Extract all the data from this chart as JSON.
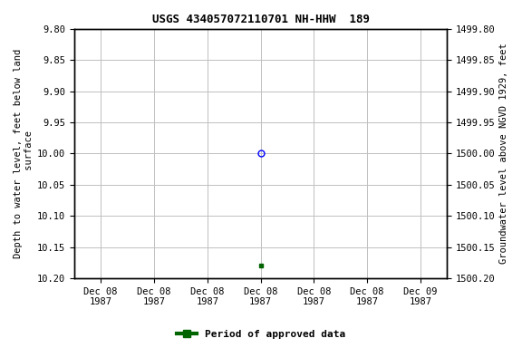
{
  "title": "USGS 434057072110701 NH-HHW  189",
  "ylabel_left": "Depth to water level, feet below land\n surface",
  "ylabel_right": "Groundwater level above NGVD 1929, feet",
  "ylim_left": [
    9.8,
    10.2
  ],
  "ylim_right": [
    1500.2,
    1499.8
  ],
  "yticks_left": [
    9.8,
    9.85,
    9.9,
    9.95,
    10.0,
    10.05,
    10.1,
    10.15,
    10.2
  ],
  "yticks_right": [
    1500.2,
    1500.15,
    1500.1,
    1500.05,
    1500.0,
    1499.95,
    1499.9,
    1499.85,
    1499.8
  ],
  "ytick_labels_left": [
    "9.80",
    "9.85",
    "9.90",
    "9.95",
    "10.00",
    "10.05",
    "10.10",
    "10.15",
    "10.20"
  ],
  "ytick_labels_right": [
    "1500.20",
    "1500.15",
    "1500.10",
    "1500.05",
    "1500.00",
    "1499.95",
    "1499.90",
    "1499.85",
    "1499.80"
  ],
  "data_point_x": 3.5,
  "data_point_y": 10.0,
  "data_point_color": "blue",
  "data_point_marker": "o",
  "green_dot_x": 3.5,
  "green_dot_y": 10.18,
  "green_dot_color": "#006400",
  "xlim": [
    0,
    7
  ],
  "xtick_positions": [
    0.5,
    1.5,
    2.5,
    3.5,
    4.5,
    5.5,
    6.5
  ],
  "xtick_labels": [
    "Dec 08\n1987",
    "Dec 08\n1987",
    "Dec 08\n1987",
    "Dec 08\n1987",
    "Dec 08\n1987",
    "Dec 08\n1987",
    "Dec 09\n1987"
  ],
  "legend_label": "Period of approved data",
  "legend_color": "#006400",
  "background_color": "#ffffff",
  "grid_color": "#c0c0c0",
  "font_size_title": 9,
  "font_size_ticks": 7.5,
  "font_size_label": 7.5
}
